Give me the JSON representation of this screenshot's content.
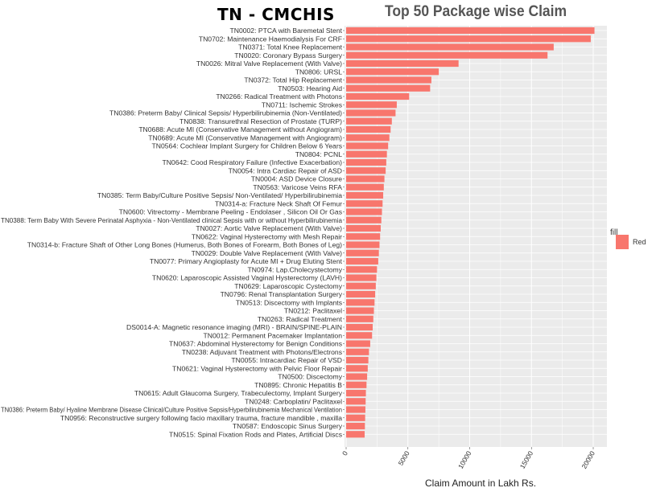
{
  "header": {
    "left_title": "TN - CMCHIS",
    "right_title": "Top 50 Package wise Claim"
  },
  "legend": {
    "title": "fill",
    "label": "Red",
    "color": "#F8766D"
  },
  "chart_data": {
    "type": "bar",
    "orientation": "horizontal",
    "title": "Top 50 Package wise Claim",
    "xlabel": "Claim Amount in Lakh Rs.",
    "ylabel": "",
    "xlim": [
      0,
      21000
    ],
    "x_ticks": [
      0,
      5000,
      10000,
      15000,
      20000
    ],
    "x_tick_labels": [
      "0",
      "5000",
      "10000",
      "15000",
      "20000"
    ],
    "bar_color": "#F8766D",
    "categories": [
      "TN0002: PTCA with Baremetal Stent",
      "TN0702: Maintenance Haemodialysis For CRF",
      "TN0371: Total Knee Replacement",
      "TN0020: Coronary Bypass Surgery",
      "TN0026: Mitral Valve Replacement (With Valve)",
      "TN0806: URSL",
      "TN0372: Total Hip Replacement",
      "TN0503: Hearing Aid",
      "TN0266: Radical Treatment with Photons",
      "TN0711: Ischemic Strokes",
      "TN0386: Preterm Baby/ Clinical Sepsis/ Hyperbilirubinemia (Non-Ventilated)",
      "TN0838: Transurethral Resection of Prostate (TURP)",
      "TN0688: Acute MI (Conservative Management without Angiogram)",
      "TN0689: Acute MI (Conservative Management with Angiogram)",
      "TN0564: Cochlear Implant Surgery for Children Below 6 Years",
      "TN0804: PCNL",
      "TN0642: Cood Respiratory Failure (Infective Exacerbation)",
      "TN0054: Intra Cardiac Repair of ASD",
      "TN0004: ASD Device Closure",
      "TN0563: Varicose Veins RFA",
      "TN0385: Term Baby/Culture Positive Sepsis/ Non-Ventilated/ Hyperbilirubinemia",
      "TN0314-a: Fracture Neck Shaft Of Femur",
      "TN0600: Vitrectomy - Membrane Peeling - Endolaser , Silicon Oil Or Gas",
      "TN0388: Term Baby With Severe Perinatal Asphyxia - Non-Ventilated clinical Sepsis with or without Hyperbilirubinemia",
      "TN0027: Aortic Valve Replacement (With Valve)",
      "TN0622: Vaginal Hysterectomy with Mesh Repair",
      "TN0314-b: Fracture Shaft of Other Long Bones (Humerus, Both Bones of Forearm, Both Bones of Leg)",
      "TN0029: Double Valve Replacement (With Valve)",
      "TN0077: Primary Angioplasty for Acute MI + Drug Eluting Stent",
      "TN0974: Lap.Cholecystectomy",
      "TN0620: Laparoscopic Assisted Vaginal Hysterectomy (LAVH)",
      "TN0629: Laparoscopic Cystectomy",
      "TN0796: Renal Transplantation Surgery",
      "TN0513: Discectomy with Implants",
      "TN0212: Paclitaxel",
      "TN0263: Radical Treatment",
      "DS0014-A: Magnetic resonance imaging (MRI) - BRAIN/SPINE-PLAIN",
      "TN0012: Permanent Pacemaker Implantation",
      "TN0637: Abdominal Hysterectomy for Benign Conditions",
      "TN0238: Adjuvant Treatment with Photons/Electrons",
      "TN0055: Intracardiac Repair of VSD",
      "TN0621: Vaginal Hysterectomy with Pelvic Floor Repair",
      "TN0500: Discectomy",
      "TN0895: Chronic Hepatitis B",
      "TN0615: Adult Glaucoma Surgery, Trabeculectomy, Implant Surgery",
      "TN0248: Carboplatin/ Paclitaxel",
      "TN0386: Preterm Baby/ Hyaline Membrane Disease Clinical/Culture Positive Sepsis/Hyperbilirubinemia Mechanical Ventilation",
      "TN0956: Reconstructive surgery following facio maxillary trauma, fracture mandible , maxilla",
      "TN0587: Endoscopic Sinus Surgery",
      "TN0515: Spinal Fixation Rods and Plates, Artificial Discs"
    ],
    "values": [
      20100,
      19800,
      16800,
      16300,
      9100,
      7500,
      6900,
      6800,
      5100,
      4100,
      4000,
      3700,
      3600,
      3500,
      3400,
      3300,
      3250,
      3200,
      3100,
      3050,
      3000,
      2950,
      2900,
      2850,
      2800,
      2750,
      2700,
      2650,
      2600,
      2500,
      2450,
      2400,
      2350,
      2300,
      2250,
      2200,
      2150,
      2100,
      1950,
      1850,
      1800,
      1750,
      1700,
      1650,
      1600,
      1580,
      1560,
      1540,
      1520,
      1500
    ]
  }
}
